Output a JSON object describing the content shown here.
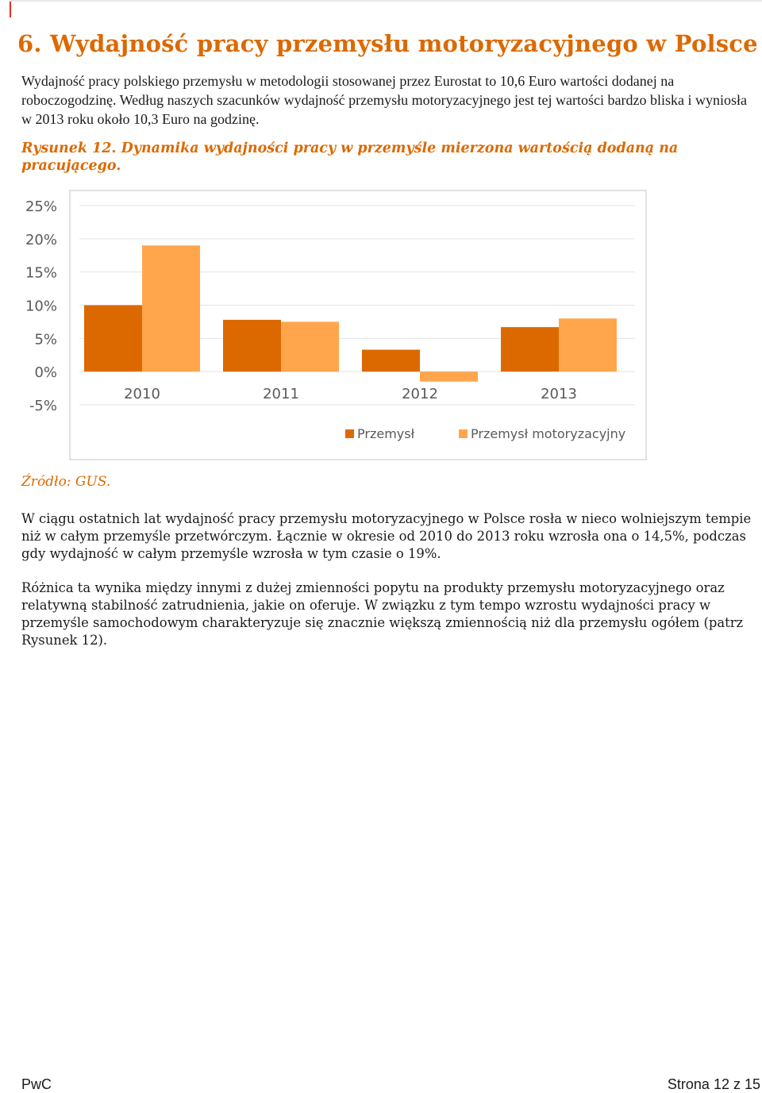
{
  "heading": "6. Wydajność pracy przemysłu motoryzacyjnego w Polsce",
  "intro": "Wydajność pracy polskiego przemysłu w metodologii stosowanej przez Eurostat to 10,6 Euro wartości dodanej na roboczogodzinę. Według naszych szacunków wydajność przemysłu motoryzacyjnego jest tej wartości bardzo bliska i wyniosła w 2013 roku około 10,3 Euro na godzinę.",
  "figure_caption": "Rysunek 12. Dynamika wydajności pracy w przemyśle mierzona wartością dodaną na pracującego.",
  "source": "Źródło: GUS.",
  "paragraph_1": "W ciągu ostatnich lat wydajność pracy przemysłu motoryzacyjnego w Polsce rosła w nieco wolniejszym tempie niż w całym przemyśle przetwórczym. Łącznie w okresie od 2010 do 2013 roku wzrosła ona o 14,5%, podczas gdy wydajność w całym przemyśle wzrosła w tym czasie o 19%.",
  "paragraph_2": "Różnica ta wynika między innymi z dużej zmienności popytu na produkty przemysłu motoryzacyjnego oraz relatywną stabilność zatrudnienia, jakie on oferuje. W związku z tym tempo wzrostu wydajności pracy w przemyśle samochodowym charakteryzuje się znacznie większą zmiennością niż dla przemysłu ogółem (patrz Rysunek 12).",
  "footer": {
    "left": "PwC",
    "right": "Strona 12 z 15"
  },
  "chart_data": {
    "type": "bar",
    "categories": [
      "2010",
      "2011",
      "2012",
      "2013"
    ],
    "series": [
      {
        "name": "Przemysł",
        "values": [
          10,
          7.8,
          3.3,
          6.7
        ],
        "color": "#dc6900"
      },
      {
        "name": "Przemysł motoryzacyjny",
        "values": [
          19,
          7.5,
          -1.5,
          8
        ],
        "color": "#ffa64d"
      }
    ],
    "ylim": [
      -5,
      25
    ],
    "yticks": [
      "25%",
      "20%",
      "15%",
      "10%",
      "5%",
      "0%",
      "-5%"
    ],
    "ytick_values": [
      25,
      20,
      15,
      10,
      5,
      0,
      -5
    ],
    "grid": true,
    "legend": "bottom-right"
  }
}
